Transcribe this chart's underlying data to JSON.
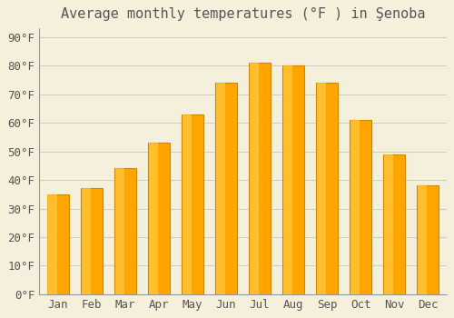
{
  "title": "Average monthly temperatures (°F ) in Şenoba",
  "months": [
    "Jan",
    "Feb",
    "Mar",
    "Apr",
    "May",
    "Jun",
    "Jul",
    "Aug",
    "Sep",
    "Oct",
    "Nov",
    "Dec"
  ],
  "temps": [
    35,
    37,
    44,
    53,
    63,
    74,
    81,
    80,
    74,
    61,
    49,
    38
  ],
  "bar_color": "#FFA500",
  "bar_highlight": "#FFCC44",
  "bar_edge_color": "#CC8800",
  "background_color": "#F5F0DC",
  "plot_bg_color": "#F5F0DC",
  "grid_color": "#CCCCCC",
  "text_color": "#555555",
  "yticks": [
    0,
    10,
    20,
    30,
    40,
    50,
    60,
    70,
    80,
    90
  ],
  "ylim": [
    0,
    93
  ],
  "title_fontsize": 11,
  "tick_fontsize": 9
}
